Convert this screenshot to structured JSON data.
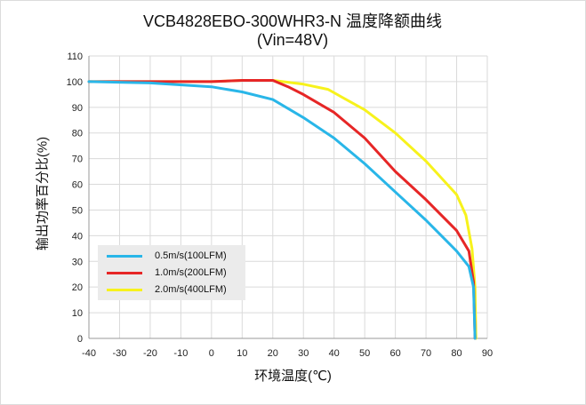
{
  "title_line1": "VCB4828EBO-300WHR3-N 温度降额曲线",
  "title_line2": "(Vin=48V)",
  "chart_data": {
    "type": "line",
    "title": "VCB4828EBO-300WHR3-N 温度降额曲线 (Vin=48V)",
    "xlabel": "环境温度(℃)",
    "ylabel": "输出功率百分比(%)",
    "xlim": [
      -40,
      90
    ],
    "ylim": [
      0,
      110
    ],
    "xticks": [
      -40,
      -30,
      -20,
      -10,
      0,
      10,
      20,
      30,
      40,
      50,
      60,
      70,
      80,
      90
    ],
    "yticks": [
      0,
      10,
      20,
      30,
      40,
      50,
      60,
      70,
      80,
      90,
      100,
      110
    ],
    "grid": true,
    "legend_position": "lower-left",
    "series": [
      {
        "name": "0.5m/s(100LFM)",
        "color": "#29b6e8",
        "x": [
          -40,
          -20,
          0,
          10,
          20,
          30,
          40,
          50,
          60,
          70,
          80,
          84,
          85.5,
          86
        ],
        "y": [
          100,
          99.5,
          98,
          96,
          93,
          86,
          78,
          68,
          57,
          46,
          34,
          28,
          20,
          0
        ]
      },
      {
        "name": "1.0m/s(200LFM)",
        "color": "#e62626",
        "x": [
          -40,
          0,
          10,
          20,
          25,
          30,
          40,
          50,
          60,
          70,
          80,
          84,
          85.5,
          86
        ],
        "y": [
          100,
          100,
          100.5,
          100.5,
          98,
          95,
          88,
          78,
          65,
          54,
          42,
          34,
          22,
          0
        ]
      },
      {
        "name": "2.0m/s(400LFM)",
        "color": "#f7f21c",
        "x": [
          -40,
          0,
          10,
          20,
          30,
          38,
          50,
          60,
          70,
          80,
          83,
          85,
          86,
          86.3
        ],
        "y": [
          100,
          100,
          100.5,
          100.5,
          99,
          97,
          89,
          80,
          69,
          56,
          48,
          35,
          20,
          0
        ]
      }
    ]
  }
}
